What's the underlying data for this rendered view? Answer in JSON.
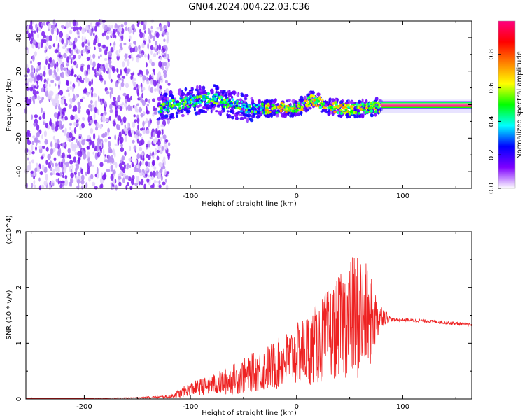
{
  "chart_data": [
    {
      "type": "heatmap",
      "title": "GN04.2024.004.22.03.C36",
      "xlabel": "Height of straight line (km)",
      "ylabel": "Frequency (Hz)",
      "xlim": [
        -255,
        165
      ],
      "ylim": [
        -50,
        50
      ],
      "x_ticks": [
        "-200",
        "-100",
        "0",
        "100"
      ],
      "y_ticks": [
        "-40",
        "-20",
        "0",
        "20",
        "40"
      ],
      "colorbar": {
        "label": "Normalized spectral amplitude",
        "range": [
          0.0,
          1.0
        ],
        "ticks": [
          "0.0",
          "0.2",
          "0.4",
          "0.6",
          "0.8"
        ],
        "colors": [
          "#ffffff",
          "#7f00ff",
          "#0000ff",
          "#00ffff",
          "#00ff00",
          "#ffff00",
          "#ff8000",
          "#ff0000",
          "#ff0080"
        ]
      },
      "regions": [
        {
          "x_range": [
            -255,
            -130
          ],
          "freq_range": [
            -50,
            50
          ],
          "amplitude": 0.05,
          "description_level": "low noise"
        },
        {
          "x_range": [
            -130,
            80
          ],
          "freq_center": 0,
          "freq_halfwidth": 8,
          "amplitude": 0.3
        },
        {
          "x_range": [
            80,
            165
          ],
          "freq_center": 0,
          "freq_halfwidth": 2,
          "amplitude": 1.0
        }
      ],
      "ridge_center": [
        [
          -130,
          -2
        ],
        [
          -100,
          2
        ],
        [
          -80,
          4
        ],
        [
          -60,
          0
        ],
        [
          -40,
          -3
        ],
        [
          -20,
          -2
        ],
        [
          0,
          -2
        ],
        [
          15,
          3
        ],
        [
          30,
          -1
        ],
        [
          50,
          -3
        ],
        [
          80,
          -1
        ],
        [
          165,
          -1
        ]
      ]
    },
    {
      "type": "line",
      "title": "",
      "xlabel": "Height of straight line (km)",
      "ylabel": "SNR (10 * v/v)",
      "y_multiplier": "(x10^4)",
      "xlim": [
        -255,
        165
      ],
      "ylim": [
        0,
        3
      ],
      "x_ticks": [
        "-200",
        "-100",
        "0",
        "100"
      ],
      "y_ticks": [
        "0",
        "1",
        "2",
        "3"
      ],
      "color": "#ee2222",
      "series": [
        {
          "x": [
            -255,
            -200,
            -150,
            -120,
            -110,
            -100,
            -80,
            -60,
            -40,
            -20,
            0,
            20,
            40,
            50,
            60,
            70,
            80,
            90,
            100,
            120,
            140,
            165
          ],
          "y": [
            0.01,
            0.01,
            0.02,
            0.04,
            0.1,
            0.18,
            0.25,
            0.35,
            0.48,
            0.6,
            0.8,
            1.0,
            1.3,
            1.45,
            1.5,
            1.4,
            1.5,
            1.42,
            1.42,
            1.4,
            1.37,
            1.33
          ],
          "spread": [
            0,
            0,
            0.01,
            0.03,
            0.08,
            0.12,
            0.18,
            0.28,
            0.35,
            0.45,
            0.55,
            0.75,
            0.9,
            1.1,
            1.2,
            0.8,
            0.2,
            0.03,
            0.03,
            0.03,
            0.03,
            0.03
          ]
        }
      ]
    }
  ]
}
